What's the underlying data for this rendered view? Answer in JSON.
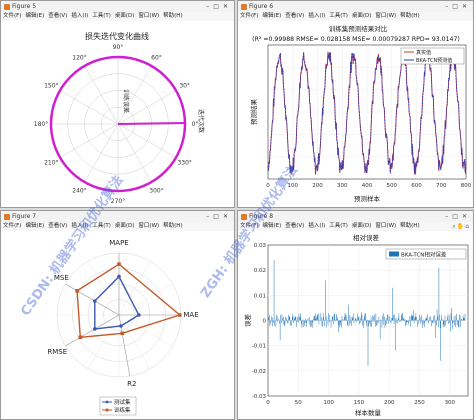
{
  "windows": {
    "fig5": {
      "title": "Figure 5",
      "menus": [
        "文件(F)",
        "编辑(E)",
        "查看(V)",
        "插入(I)",
        "工具(T)",
        "桌面(D)",
        "窗口(W)",
        "帮助(H)"
      ],
      "plot_title": "损失迭代变化曲线",
      "rlabel": "训练误差",
      "alabel": "迭代次数",
      "angle_ticks": [
        "0°",
        "30°",
        "60°",
        "90°",
        "120°",
        "150°",
        "180°",
        "210°",
        "240°",
        "270°",
        "300°",
        "330°"
      ]
    },
    "fig6": {
      "title": "Figure 6",
      "menus": [
        "文件(F)",
        "编辑(E)",
        "查看(V)",
        "插入(I)",
        "工具(T)",
        "桌面(D)",
        "窗口(W)",
        "帮助(H)"
      ],
      "plot_title": "训练集预测结果对比",
      "metrics": "(R² =0.99988 RMSE= 0.028158 MSE= 0.00079287 RPD= 93.0147)",
      "xlabel": "预测样本",
      "ylabel": "预测结果",
      "legend": [
        "真实值",
        "BKA-TCN预测值"
      ],
      "xticks": [
        "0",
        "100",
        "200",
        "300",
        "400",
        "500",
        "600",
        "700",
        "800"
      ]
    },
    "fig7": {
      "title": "Figure 7",
      "menus": [
        "文件(F)",
        "编辑(E)",
        "查看(V)",
        "插入(I)",
        "工具(T)",
        "桌面(D)",
        "窗口(W)",
        "帮助(H)"
      ],
      "axes": [
        "MAPE",
        "MAE",
        "R2",
        "RMSE",
        "MSE"
      ],
      "legend": [
        "测试集",
        "训练集"
      ]
    },
    "fig8": {
      "title": "Figure 8",
      "menus": [
        "文件(F)",
        "编辑(E)",
        "查看(V)",
        "插入(I)",
        "工具(T)",
        "桌面(D)",
        "窗口(W)",
        "帮助(H)"
      ],
      "plot_title": "相对误差",
      "xlabel": "样本数量",
      "ylabel": "误差",
      "legend": [
        "BKA-TCN相对误差"
      ],
      "xticks": [
        "0",
        "50",
        "100",
        "150",
        "200",
        "250",
        "300"
      ],
      "yticks": [
        "0.03",
        "0.02",
        "0.01",
        "0",
        "-0.01",
        "-0.02",
        "-0.03"
      ]
    }
  },
  "watermarks": [
    "ZGH: 机器学习和优化算法",
    "CSDN: 机器学习和优化算法"
  ],
  "chart_data": [
    {
      "type": "line",
      "subtype": "polar",
      "title": "损失迭代变化曲线",
      "xlabel": "迭代次数",
      "ylabel": "训练误差",
      "series": [
        {
          "name": "训练误差",
          "color": "#d01fd0"
        }
      ]
    },
    {
      "type": "line",
      "title": "训练集预测结果对比",
      "xlabel": "预测样本",
      "ylabel": "预测结果",
      "xlim": [
        0,
        800
      ],
      "series": [
        {
          "name": "真实值",
          "color": "#d63a3a"
        },
        {
          "name": "BKA-TCN预测值",
          "color": "#2c3fb8"
        }
      ]
    },
    {
      "type": "line",
      "subtype": "radar",
      "categories": [
        "MAPE",
        "MAE",
        "R2",
        "RMSE",
        "MSE"
      ],
      "series": [
        {
          "name": "测试集",
          "color": "#3f57b0",
          "values": [
            0.62,
            0.32,
            0.18,
            0.45,
            0.45
          ]
        },
        {
          "name": "训练集",
          "color": "#c25a2a",
          "values": [
            0.82,
            0.98,
            0.3,
            0.72,
            0.78
          ]
        }
      ]
    },
    {
      "type": "bar",
      "title": "相对误差",
      "xlabel": "样本数量",
      "ylabel": "误差",
      "xlim": [
        0,
        330
      ],
      "ylim": [
        -0.03,
        0.03
      ],
      "series": [
        {
          "name": "BKA-TCN相对误差",
          "color": "#1e73b8"
        }
      ]
    }
  ]
}
